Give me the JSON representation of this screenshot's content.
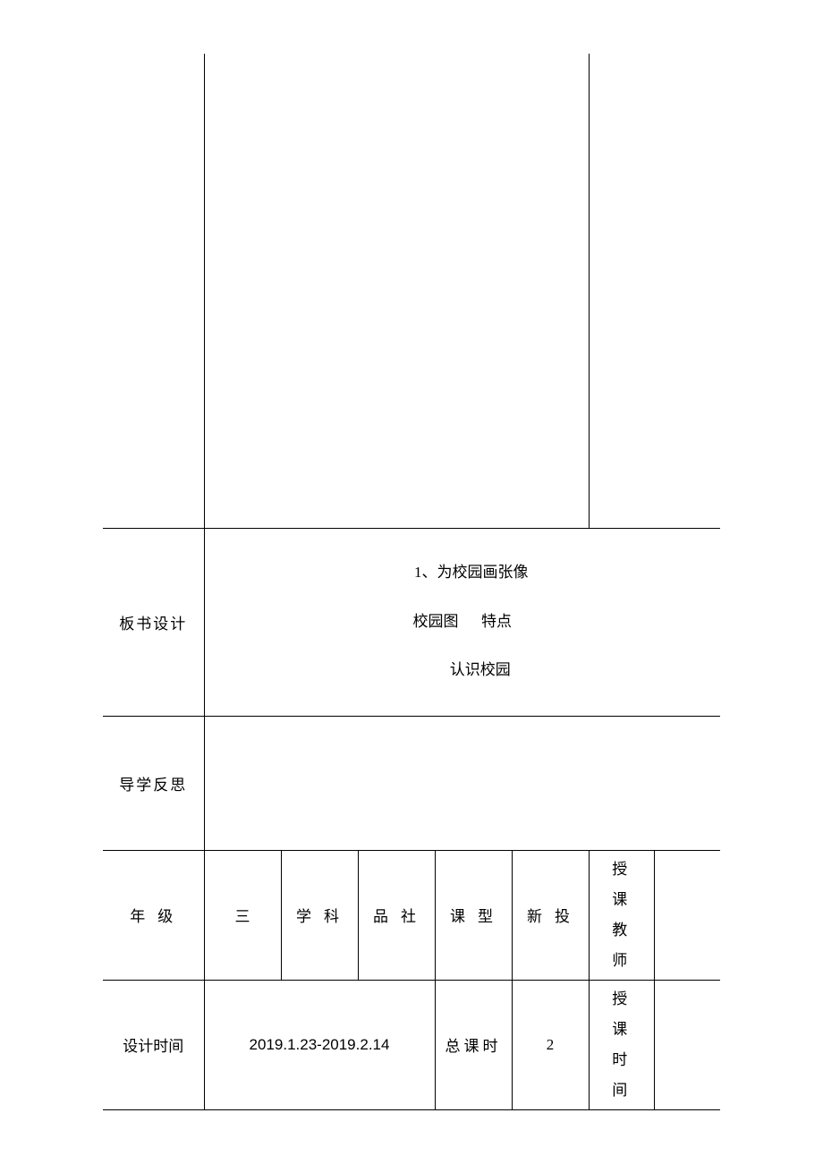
{
  "table": {
    "board": {
      "label": "板书设计",
      "line1": "1、为校园画张像",
      "line2_a": "校园图",
      "line2_b": "特点",
      "line3": "认识校园"
    },
    "reflect": {
      "label": "导学反思"
    },
    "grade_row": {
      "label": "年级",
      "grade": "三",
      "subject_label": "学科",
      "subject": "品社",
      "type_label": "课型",
      "type": "新投",
      "teacher_label": "授课教师"
    },
    "design_row": {
      "label": "设计时间",
      "date": "2019.1.23-2019.2.14",
      "total_label": "总课时",
      "total": "2",
      "time_label": "授课时间"
    }
  },
  "style": {
    "border_color": "#000000",
    "background": "#ffffff",
    "font_size": 17
  }
}
